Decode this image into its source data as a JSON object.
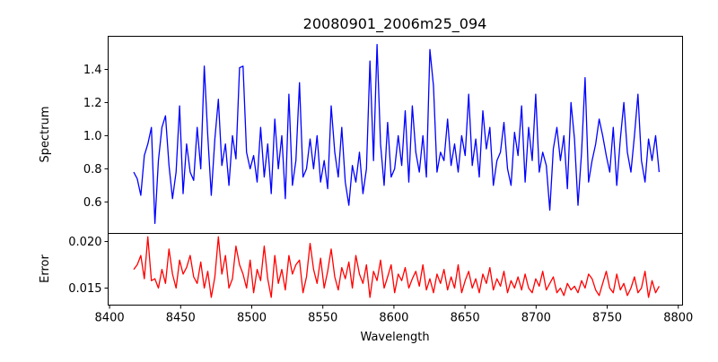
{
  "chart_data": [
    {
      "type": "line",
      "title": "20080901_2006m25_094",
      "xlabel": "",
      "ylabel": "Spectrum",
      "xlim": [
        8399,
        8803
      ],
      "ylim": [
        0.41,
        1.6
      ],
      "yticks": [
        0.6,
        0.8,
        1.0,
        1.2,
        1.4
      ],
      "ytick_labels": [
        "0.6",
        "0.8",
        "1.0",
        "1.2",
        "1.4"
      ],
      "grid": false,
      "series": [
        {
          "name": "Spectrum",
          "color": "#0000ff",
          "x_start": 8417,
          "x_step": 2.48,
          "values": [
            0.78,
            0.74,
            0.64,
            0.88,
            0.95,
            1.05,
            0.47,
            0.85,
            1.05,
            1.12,
            0.82,
            0.62,
            0.78,
            1.18,
            0.65,
            0.95,
            0.78,
            0.73,
            1.05,
            0.8,
            1.42,
            1.0,
            0.64,
            0.98,
            1.22,
            0.82,
            0.95,
            0.7,
            1.0,
            0.86,
            1.41,
            1.42,
            0.9,
            0.8,
            0.88,
            0.72,
            1.05,
            0.75,
            0.95,
            0.65,
            1.1,
            0.8,
            1.0,
            0.62,
            1.25,
            0.7,
            0.85,
            1.32,
            0.75,
            0.8,
            0.98,
            0.8,
            1.0,
            0.72,
            0.85,
            0.68,
            1.18,
            0.9,
            0.75,
            1.05,
            0.72,
            0.58,
            0.82,
            0.72,
            0.9,
            0.65,
            0.8,
            1.45,
            0.85,
            1.55,
            0.95,
            0.7,
            1.08,
            0.75,
            0.8,
            1.0,
            0.82,
            1.15,
            0.72,
            1.18,
            0.9,
            0.78,
            1.0,
            0.75,
            1.52,
            1.3,
            0.78,
            0.9,
            0.85,
            1.1,
            0.82,
            0.95,
            0.78,
            1.0,
            0.88,
            1.25,
            0.82,
            0.98,
            0.75,
            1.15,
            0.92,
            1.05,
            0.7,
            0.85,
            0.9,
            1.08,
            0.8,
            0.7,
            1.02,
            0.88,
            1.18,
            0.72,
            1.05,
            0.85,
            1.25,
            0.78,
            0.9,
            0.82,
            0.55,
            0.92,
            1.05,
            0.85,
            1.0,
            0.68,
            1.2,
            0.98,
            0.58,
            0.9,
            1.35,
            0.72,
            0.85,
            0.95,
            1.1,
            1.0,
            0.88,
            0.78,
            1.05,
            0.7,
            0.98,
            1.2,
            0.9,
            0.78,
            1.0,
            1.25,
            0.85,
            0.72,
            0.98,
            0.85,
            1.0,
            0.78
          ]
        }
      ]
    },
    {
      "type": "line",
      "title": "",
      "xlabel": "Wavelength",
      "ylabel": "Error",
      "xlim": [
        8399,
        8803
      ],
      "ylim": [
        0.01317,
        0.02087
      ],
      "xticks": [
        8400,
        8450,
        8500,
        8550,
        8600,
        8650,
        8700,
        8750,
        8800
      ],
      "xtick_labels": [
        "8400",
        "8450",
        "8500",
        "8550",
        "8600",
        "8650",
        "8700",
        "8750",
        "8800"
      ],
      "yticks": [
        0.015,
        0.02
      ],
      "ytick_labels": [
        "0.015",
        "0.020"
      ],
      "grid": false,
      "series": [
        {
          "name": "Error",
          "color": "#ff0000",
          "x_start": 8417,
          "x_step": 2.48,
          "values": [
            0.017,
            0.0175,
            0.0185,
            0.016,
            0.0205,
            0.0158,
            0.016,
            0.015,
            0.017,
            0.0155,
            0.0192,
            0.0165,
            0.015,
            0.018,
            0.0165,
            0.0172,
            0.0185,
            0.0162,
            0.0155,
            0.0178,
            0.015,
            0.0168,
            0.014,
            0.0162,
            0.0205,
            0.0165,
            0.0185,
            0.015,
            0.016,
            0.0195,
            0.0175,
            0.0165,
            0.015,
            0.018,
            0.0145,
            0.017,
            0.0158,
            0.0195,
            0.016,
            0.014,
            0.0185,
            0.0155,
            0.017,
            0.0148,
            0.0185,
            0.0165,
            0.0175,
            0.018,
            0.0145,
            0.0162,
            0.0198,
            0.017,
            0.0155,
            0.0182,
            0.015,
            0.0168,
            0.0192,
            0.0162,
            0.0148,
            0.0172,
            0.016,
            0.0178,
            0.015,
            0.0185,
            0.0165,
            0.0155,
            0.0175,
            0.014,
            0.0168,
            0.0158,
            0.018,
            0.015,
            0.0162,
            0.0175,
            0.0145,
            0.0165,
            0.0158,
            0.0172,
            0.015,
            0.016,
            0.0168,
            0.0152,
            0.0175,
            0.0148,
            0.016,
            0.0145,
            0.0165,
            0.0155,
            0.017,
            0.0148,
            0.0162,
            0.015,
            0.0175,
            0.0145,
            0.0158,
            0.0168,
            0.015,
            0.016,
            0.0145,
            0.0165,
            0.0155,
            0.0172,
            0.0148,
            0.016,
            0.0152,
            0.0168,
            0.0145,
            0.0158,
            0.015,
            0.0162,
            0.0148,
            0.0165,
            0.015,
            0.0145,
            0.016,
            0.0152,
            0.0168,
            0.0148,
            0.0155,
            0.0162,
            0.0145,
            0.015,
            0.0142,
            0.0155,
            0.0148,
            0.0152,
            0.0145,
            0.0158,
            0.015,
            0.0165,
            0.016,
            0.0148,
            0.0142,
            0.0155,
            0.0168,
            0.015,
            0.0145,
            0.0165,
            0.0148,
            0.0155,
            0.0142,
            0.015,
            0.0162,
            0.0145,
            0.015,
            0.0168,
            0.014,
            0.0158,
            0.0145,
            0.0152
          ]
        }
      ]
    }
  ]
}
